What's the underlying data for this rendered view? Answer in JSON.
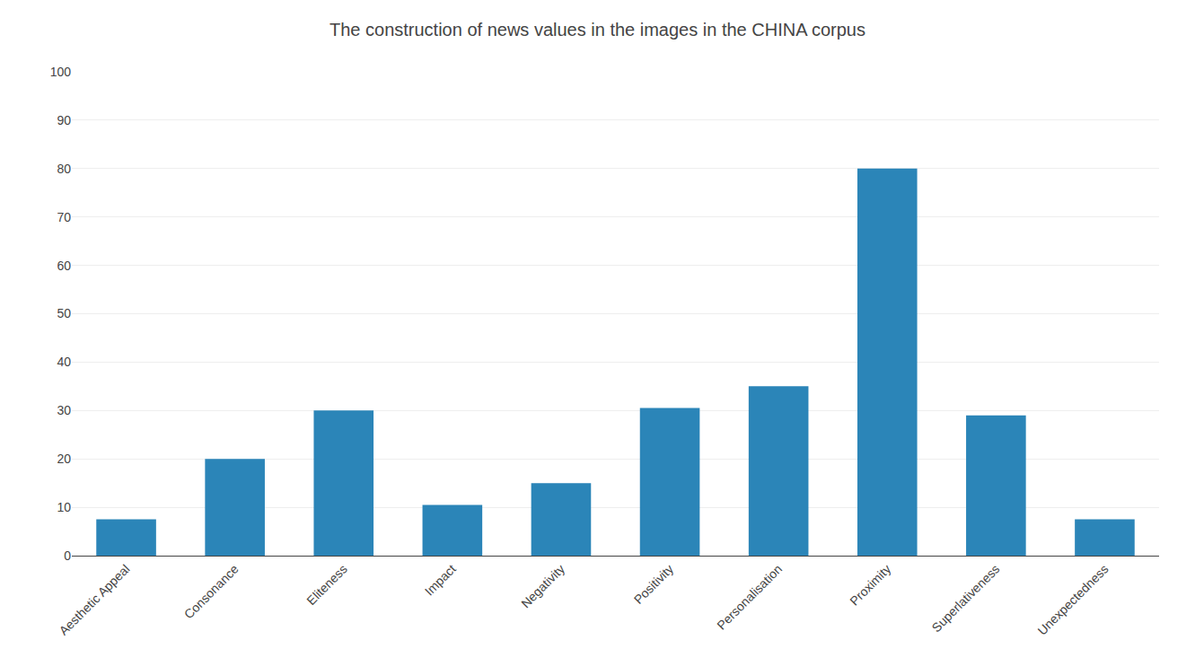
{
  "chart_data": {
    "type": "bar",
    "title": "The construction of news values in the images in the CHINA corpus",
    "categories": [
      "Aesthetic Appeal",
      "Consonance",
      "Eliteness",
      "Impact",
      "Negativity",
      "Positivity",
      "Personalisation",
      "Proximity",
      "Superlativeness",
      "Unexpectedness"
    ],
    "values": [
      7.5,
      20,
      30,
      10.5,
      15,
      30.5,
      35,
      80,
      29,
      7.5
    ],
    "color": "#2b85b8",
    "ylim": [
      0,
      100
    ],
    "yticks": [
      0,
      10,
      20,
      30,
      40,
      50,
      60,
      70,
      80,
      90,
      100
    ],
    "grid": true
  }
}
